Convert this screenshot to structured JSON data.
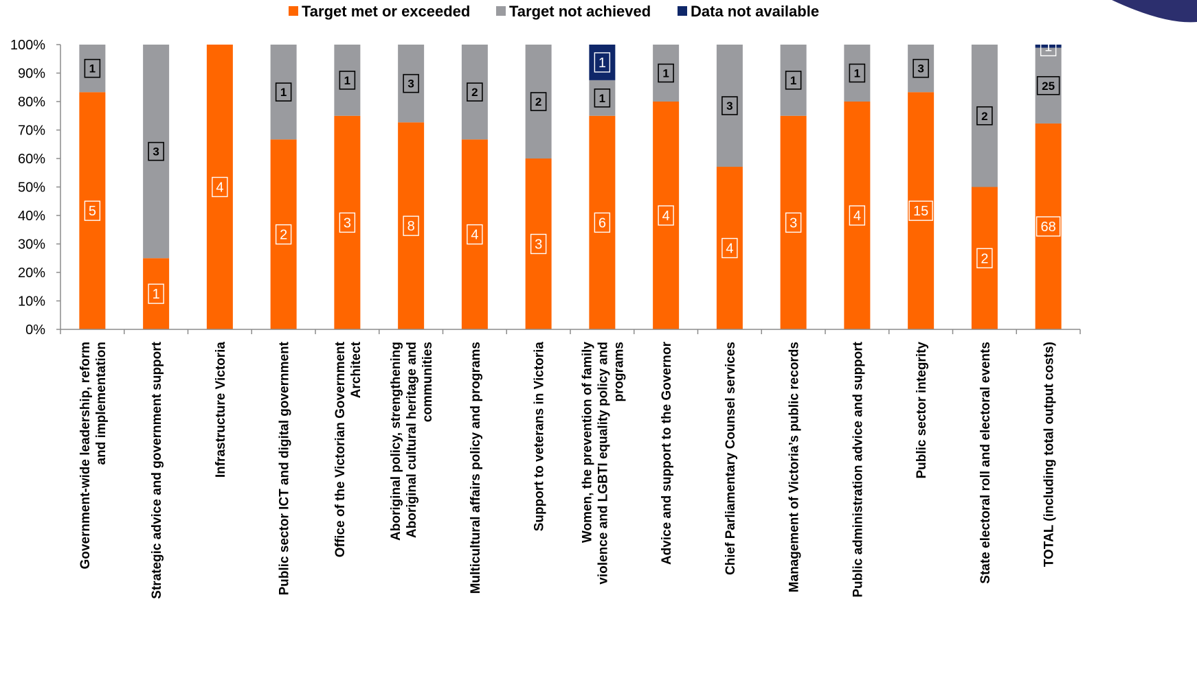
{
  "colors": {
    "met": "#ff6600",
    "not_achieved": "#9a9b9f",
    "not_available": "#0f2769",
    "axis": "#8c8c8c",
    "corner_shape": "#2c2f6e"
  },
  "legend": [
    {
      "label": "Target met or exceeded",
      "color": "#ff6600"
    },
    {
      "label": "Target not achieved",
      "color": "#9a9b9f"
    },
    {
      "label": "Data not available",
      "color": "#0f2769"
    }
  ],
  "chart_data": {
    "type": "bar",
    "stacked": true,
    "ylim": [
      0,
      100
    ],
    "y_ticks": [
      "0%",
      "10%",
      "20%",
      "30%",
      "40%",
      "50%",
      "60%",
      "70%",
      "80%",
      "90%",
      "100%"
    ],
    "grid": false,
    "legend_position": "top",
    "categories": [
      [
        "Government-wide leadership, reform",
        "and implementation"
      ],
      [
        "Strategic advice and government support"
      ],
      [
        "Infrastructure Victoria"
      ],
      [
        "Public sector ICT and digital government"
      ],
      [
        "Office of the Victorian Government",
        "Architect"
      ],
      [
        "Aboriginal policy, strengthening",
        "Aboriginal cultural heritage and",
        "communities"
      ],
      [
        "Multicultural affairs policy and programs"
      ],
      [
        "Support to veterans in Victoria"
      ],
      [
        "Women, the prevention of family",
        "violence and LGBTI equality policy and",
        "programs"
      ],
      [
        "Advice and support to the Governor"
      ],
      [
        "Chief Parliamentary Counsel services"
      ],
      [
        "Management of Victoria’s public records"
      ],
      [
        "Public administration advice and support"
      ],
      [
        "Public sector integrity"
      ],
      [
        "State electoral roll and electoral events"
      ],
      [
        "TOTAL (including total output costs)"
      ]
    ],
    "series": [
      {
        "name": "Target met or exceeded",
        "counts": [
          5,
          1,
          4,
          2,
          3,
          8,
          4,
          3,
          6,
          4,
          4,
          3,
          4,
          15,
          2,
          68
        ]
      },
      {
        "name": "Target not achieved",
        "counts": [
          1,
          3,
          "",
          1,
          1,
          3,
          2,
          2,
          1,
          1,
          3,
          1,
          1,
          3,
          2,
          25
        ]
      },
      {
        "name": "Data not available",
        "counts": [
          "",
          "",
          "",
          "",
          "",
          "",
          "",
          "",
          1,
          "",
          "",
          "",
          "",
          "",
          "",
          1
        ]
      }
    ],
    "percent_values": {
      "met": [
        83.3,
        25,
        100,
        66.7,
        75,
        72.7,
        66.7,
        60,
        75,
        80,
        57.1,
        75,
        80,
        83.3,
        50,
        72.3
      ],
      "not_achieved": [
        16.7,
        75,
        0,
        33.3,
        25,
        27.3,
        33.3,
        40,
        12.5,
        20,
        42.9,
        25,
        20,
        16.7,
        50,
        26.6
      ],
      "not_available": [
        0,
        0,
        0,
        0,
        0,
        0,
        0,
        0,
        12.5,
        0,
        0,
        0,
        0,
        0,
        0,
        1.1
      ]
    }
  }
}
